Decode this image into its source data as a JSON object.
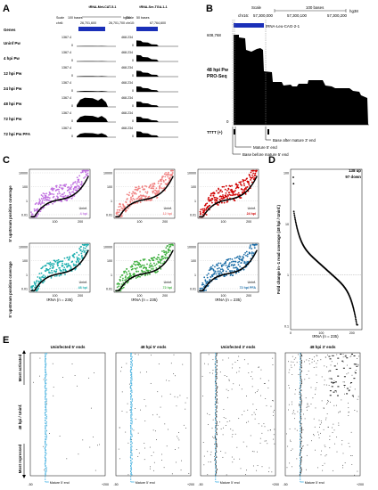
{
  "panelA": {
    "letter": "A",
    "col1_title": "tRNA-Met-CAT-5-1",
    "col2_title": "tRNA-Ser-TGA-1-1",
    "scale_label": "Scale",
    "col1_scale": "100 bases",
    "col1_build": "hg38",
    "col1_chr": "chr6:",
    "col1_ticks": [
      "26,701,600",
      "26,701,700"
    ],
    "col2_scale": "50 bases",
    "col2_chr": "chr10:",
    "col2_ticks": [
      "67,764,600"
    ],
    "genes_label": "Genes",
    "tracks": [
      {
        "label": "Uninf Pw",
        "max1": "1367.4",
        "max2": "468.234",
        "h1": 0.03,
        "h2": 0.55
      },
      {
        "label": "4 hpi Pw",
        "max1": "1367.4",
        "max2": "468.234",
        "h1": 0.03,
        "h2": 0.6
      },
      {
        "label": "12 hpi Pw",
        "max1": "1367.4",
        "max2": "468.234",
        "h1": 0.05,
        "h2": 0.55
      },
      {
        "label": "24 hpi Pw",
        "max1": "1367.4",
        "max2": "468.234",
        "h1": 0.08,
        "h2": 0.5
      },
      {
        "label": "48 hpi Pw",
        "max1": "1367.4",
        "max2": "468.234",
        "h1": 0.85,
        "h2": 0.5
      },
      {
        "label": "72 hpi Pw",
        "max1": "1367.4",
        "max2": "468.234",
        "h1": 0.6,
        "h2": 0.5
      },
      {
        "label": "72 hpi Pw PFA",
        "max1": "1367.4",
        "max2": "468.234",
        "h1": 0.4,
        "h2": 0.55
      }
    ],
    "zero": "0"
  },
  "panelB": {
    "letter": "B",
    "scale_label": "Scale",
    "scale_bar": "100 bases",
    "build": "hg38",
    "chr": "chr16:",
    "ticks": [
      "57,300,000",
      "57,300,100",
      "57,300,200"
    ],
    "gene": "tRNA-Leu-CAG-2-1",
    "ymax": "608,768",
    "ymin": "0",
    "track_label_1": "48 hpi Pw",
    "track_label_2": "PRO-Seq",
    "tttt_label": "TTTT (+)",
    "annot_after_3": "Base after mature 3' end",
    "annot_mature_5": "Mature 5' end",
    "annot_before_5": "Base before mature 5' end"
  },
  "panelC": {
    "letter": "C",
    "ylabel": "5' upstream position coverage",
    "xlabel": "tRNA (n = 235)",
    "uninf_label": "Uninf.",
    "ytick_labels": [
      "10000",
      "100",
      "1",
      "0.01"
    ],
    "xtick_labels": [
      "100",
      "200"
    ],
    "plots": [
      {
        "label": "4 hpi",
        "color": "#c070e0"
      },
      {
        "label": "12 hpi",
        "color": "#f08080"
      },
      {
        "label": "24 hpi",
        "color": "#d00000"
      },
      {
        "label": "48 hpi",
        "color": "#20b0b0"
      },
      {
        "label": "72 hpi",
        "color": "#40b040"
      },
      {
        "label": "72 hpi PFA",
        "color": "#1e6fa8"
      }
    ]
  },
  "panelD": {
    "letter": "D",
    "up_label": "138 up",
    "down_label": "97 down",
    "ylabel": "Fold change in -1 read coverage (48 hpi / Uninf.)",
    "xlabel": "tRNA (n = 235)",
    "ytick_labels": [
      "100",
      "10",
      "1",
      "0.1"
    ],
    "xtick_labels": [
      "0",
      "100",
      "200"
    ]
  },
  "panelE": {
    "letter": "E",
    "titles": [
      "Uninfected 5' ends",
      "48 hpi 5' ends",
      "Uninfected 3' ends",
      "48 hpi 3' ends"
    ],
    "mature_label": "Mature 5' end",
    "xmin": "-50",
    "xmax": "+200",
    "side_top": "Most activated",
    "side_mid": "48 hpi / Uninf.",
    "side_bottom": "Most repressed"
  }
}
